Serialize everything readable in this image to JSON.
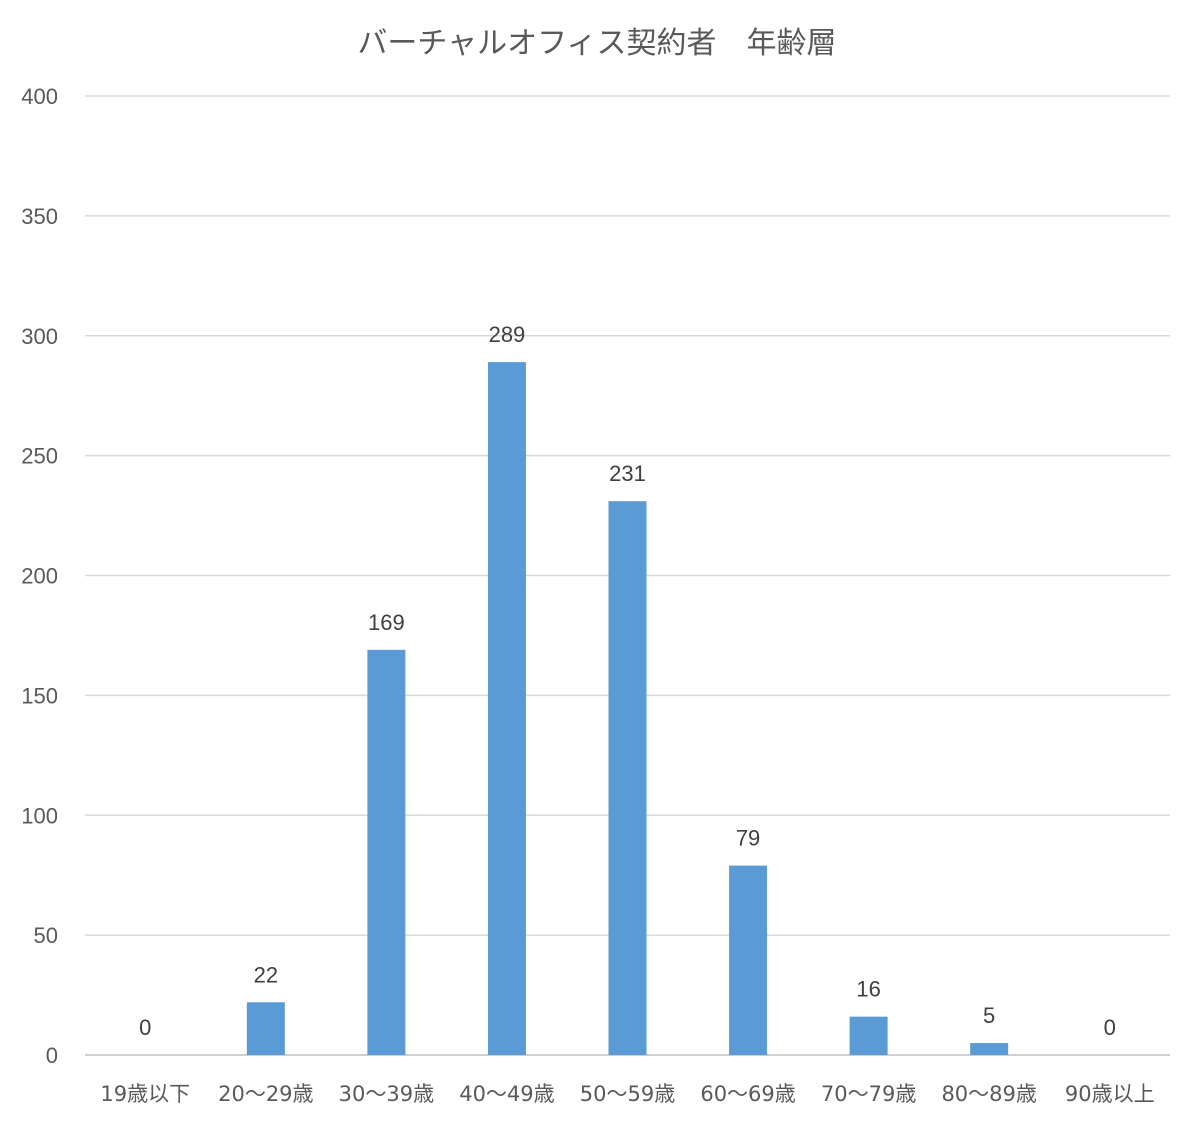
{
  "chart_data": {
    "type": "bar",
    "title": "バーチャルオフィス契約者　年齢層",
    "categories": [
      "19歳以下",
      "20～29歳",
      "30～39歳",
      "40～49歳",
      "50～59歳",
      "60～69歳",
      "70～79歳",
      "80～89歳",
      "90歳以上"
    ],
    "values": [
      0,
      22,
      169,
      289,
      231,
      79,
      16,
      5,
      0
    ],
    "data_labels": [
      "0",
      "22",
      "169",
      "289",
      "231",
      "79",
      "16",
      "5",
      "0"
    ],
    "y_ticks": [
      "0",
      "50",
      "100",
      "150",
      "200",
      "250",
      "300",
      "350",
      "400"
    ],
    "ylim": [
      0,
      400
    ],
    "grid": true,
    "legend": "none",
    "bar_color": "#5B9BD5"
  }
}
